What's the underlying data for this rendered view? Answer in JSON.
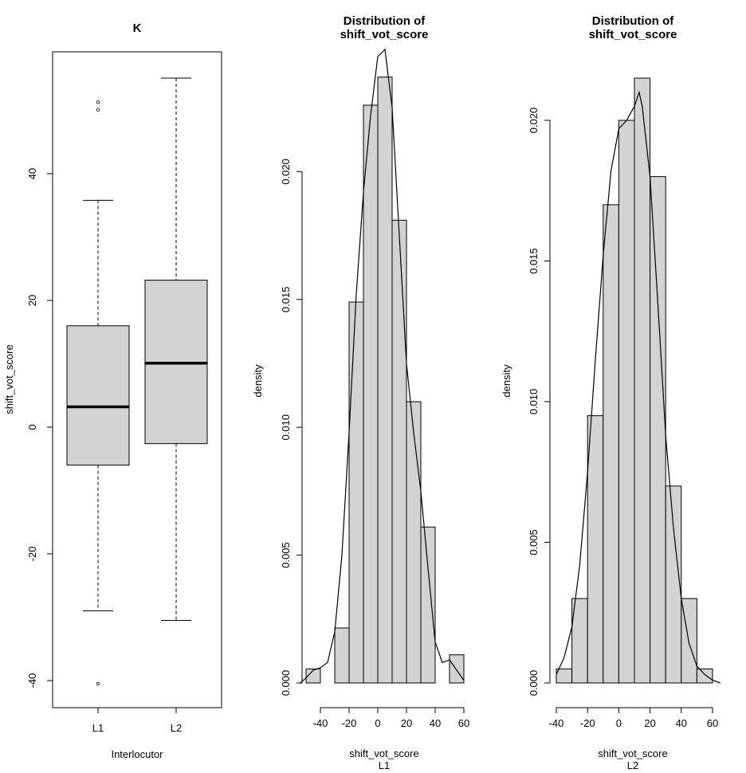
{
  "chart_data": [
    {
      "type": "boxplot",
      "title": "K",
      "xlabel": "Interlocutor",
      "ylabel": "shift_vot_score",
      "categories": [
        "L1",
        "L2"
      ],
      "ylim": [
        -44,
        60
      ],
      "yticks": [
        -40,
        -20,
        0,
        20,
        40
      ],
      "boxes": [
        {
          "name": "L1",
          "whisker_low": -29,
          "q1": -6,
          "median": 3.2,
          "q3": 16,
          "whisker_high": 35.8,
          "outliers": [
            -40.5,
            50.1,
            51.3
          ]
        },
        {
          "name": "L2",
          "whisker_low": -30.5,
          "q1": -2.6,
          "median": 10.1,
          "q3": 23.2,
          "whisker_high": 55.1,
          "outliers": []
        }
      ],
      "colors": {
        "box": "#d3d3d3",
        "line": "#000000"
      }
    },
    {
      "type": "histogram",
      "title_line1": "Distribution of",
      "title_line2": "shift_vot_score",
      "xlabel_line1": "shift_vot_score",
      "xlabel_line2": "L1",
      "ylabel": "density",
      "xticks": [
        -40,
        -20,
        0,
        20,
        40,
        60
      ],
      "yticks": [
        "0.000",
        "0.005",
        "0.010",
        "0.015",
        "0.020"
      ],
      "ylim": [
        0,
        0.0245
      ],
      "bins": [
        {
          "x0": -50,
          "x1": -40,
          "density": 0.00055
        },
        {
          "x0": -40,
          "x1": -30,
          "density": 0
        },
        {
          "x0": -30,
          "x1": -20,
          "density": 0.00215
        },
        {
          "x0": -20,
          "x1": -10,
          "density": 0.0149
        },
        {
          "x0": -10,
          "x1": 0,
          "density": 0.0226
        },
        {
          "x0": 0,
          "x1": 10,
          "density": 0.0237
        },
        {
          "x0": 10,
          "x1": 20,
          "density": 0.0181
        },
        {
          "x0": 20,
          "x1": 30,
          "density": 0.011
        },
        {
          "x0": 30,
          "x1": 40,
          "density": 0.0061
        },
        {
          "x0": 40,
          "x1": 50,
          "density": 0
        },
        {
          "x0": 50,
          "x1": 60,
          "density": 0.0011
        }
      ],
      "density_curve": [
        [
          -54,
          0.0
        ],
        [
          -50,
          0.0002
        ],
        [
          -45,
          0.0005
        ],
        [
          -40,
          0.0006
        ],
        [
          -35,
          0.0008
        ],
        [
          -30,
          0.002
        ],
        [
          -25,
          0.005
        ],
        [
          -20,
          0.0098
        ],
        [
          -15,
          0.0152
        ],
        [
          -10,
          0.0192
        ],
        [
          -5,
          0.0222
        ],
        [
          0,
          0.0245
        ],
        [
          5,
          0.0252
        ],
        [
          10,
          0.0225
        ],
        [
          15,
          0.0175
        ],
        [
          20,
          0.0125
        ],
        [
          25,
          0.0098
        ],
        [
          30,
          0.0075
        ],
        [
          35,
          0.0045
        ],
        [
          40,
          0.0016
        ],
        [
          45,
          0.0008
        ],
        [
          50,
          0.0009
        ],
        [
          55,
          0.0005
        ],
        [
          60,
          0.0001
        ]
      ]
    },
    {
      "type": "histogram",
      "title_line1": "Distribution of",
      "title_line2": "shift_vot_score",
      "xlabel_line1": "shift_vot_score",
      "xlabel_line2": "L2",
      "ylabel": "density",
      "xticks": [
        -40,
        -20,
        0,
        20,
        40,
        60
      ],
      "yticks": [
        "0.000",
        "0.005",
        "0.010",
        "0.015",
        "0.020"
      ],
      "ylim": [
        0,
        0.0215
      ],
      "bins": [
        {
          "x0": -40,
          "x1": -30,
          "density": 0.0005
        },
        {
          "x0": -30,
          "x1": -20,
          "density": 0.003
        },
        {
          "x0": -20,
          "x1": -10,
          "density": 0.0095
        },
        {
          "x0": -10,
          "x1": 0,
          "density": 0.017
        },
        {
          "x0": 0,
          "x1": 10,
          "density": 0.02
        },
        {
          "x0": 10,
          "x1": 20,
          "density": 0.0215
        },
        {
          "x0": 20,
          "x1": 30,
          "density": 0.018
        },
        {
          "x0": 30,
          "x1": 40,
          "density": 0.007
        },
        {
          "x0": 40,
          "x1": 50,
          "density": 0.003
        },
        {
          "x0": 50,
          "x1": 60,
          "density": 0.0005
        }
      ],
      "density_curve": [
        [
          -40,
          0.0003
        ],
        [
          -35,
          0.0009
        ],
        [
          -30,
          0.002
        ],
        [
          -25,
          0.0042
        ],
        [
          -20,
          0.0075
        ],
        [
          -15,
          0.0115
        ],
        [
          -10,
          0.0152
        ],
        [
          -5,
          0.0182
        ],
        [
          0,
          0.0197
        ],
        [
          5,
          0.02
        ],
        [
          10,
          0.0205
        ],
        [
          13,
          0.021
        ],
        [
          15,
          0.0205
        ],
        [
          20,
          0.018
        ],
        [
          25,
          0.0135
        ],
        [
          30,
          0.0088
        ],
        [
          35,
          0.0055
        ],
        [
          40,
          0.003
        ],
        [
          45,
          0.0014
        ],
        [
          50,
          0.0006
        ],
        [
          55,
          0.0003
        ],
        [
          60,
          0.0001
        ],
        [
          65,
          0.0
        ]
      ]
    }
  ]
}
